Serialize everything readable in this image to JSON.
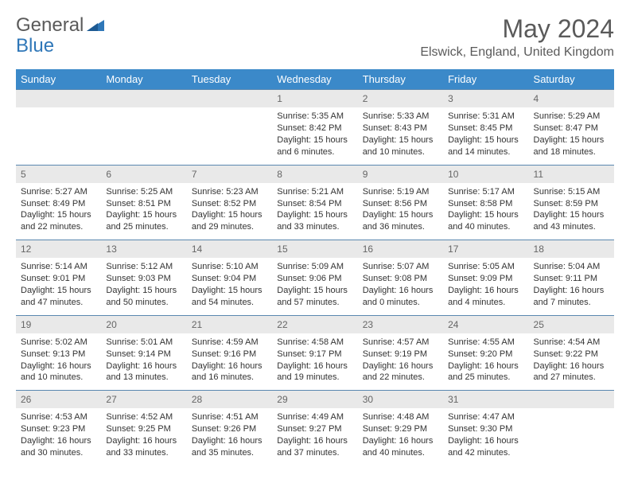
{
  "logo": {
    "general": "General",
    "blue": "Blue"
  },
  "title": "May 2024",
  "location": "Elswick, England, United Kingdom",
  "colors": {
    "header_bg": "#3b89c9",
    "header_text": "#ffffff",
    "daynum_bg": "#e9e9e9",
    "daynum_text": "#666666",
    "border": "#5a88b0",
    "logo_blue": "#2f77b8",
    "logo_gray": "#5a5a5a"
  },
  "day_names": [
    "Sunday",
    "Monday",
    "Tuesday",
    "Wednesday",
    "Thursday",
    "Friday",
    "Saturday"
  ],
  "weeks": [
    {
      "nums": [
        "",
        "",
        "",
        "1",
        "2",
        "3",
        "4"
      ],
      "cells": [
        null,
        null,
        null,
        {
          "sunrise": "Sunrise: 5:35 AM",
          "sunset": "Sunset: 8:42 PM",
          "daylight": "Daylight: 15 hours and 6 minutes."
        },
        {
          "sunrise": "Sunrise: 5:33 AM",
          "sunset": "Sunset: 8:43 PM",
          "daylight": "Daylight: 15 hours and 10 minutes."
        },
        {
          "sunrise": "Sunrise: 5:31 AM",
          "sunset": "Sunset: 8:45 PM",
          "daylight": "Daylight: 15 hours and 14 minutes."
        },
        {
          "sunrise": "Sunrise: 5:29 AM",
          "sunset": "Sunset: 8:47 PM",
          "daylight": "Daylight: 15 hours and 18 minutes."
        }
      ]
    },
    {
      "nums": [
        "5",
        "6",
        "7",
        "8",
        "9",
        "10",
        "11"
      ],
      "cells": [
        {
          "sunrise": "Sunrise: 5:27 AM",
          "sunset": "Sunset: 8:49 PM",
          "daylight": "Daylight: 15 hours and 22 minutes."
        },
        {
          "sunrise": "Sunrise: 5:25 AM",
          "sunset": "Sunset: 8:51 PM",
          "daylight": "Daylight: 15 hours and 25 minutes."
        },
        {
          "sunrise": "Sunrise: 5:23 AM",
          "sunset": "Sunset: 8:52 PM",
          "daylight": "Daylight: 15 hours and 29 minutes."
        },
        {
          "sunrise": "Sunrise: 5:21 AM",
          "sunset": "Sunset: 8:54 PM",
          "daylight": "Daylight: 15 hours and 33 minutes."
        },
        {
          "sunrise": "Sunrise: 5:19 AM",
          "sunset": "Sunset: 8:56 PM",
          "daylight": "Daylight: 15 hours and 36 minutes."
        },
        {
          "sunrise": "Sunrise: 5:17 AM",
          "sunset": "Sunset: 8:58 PM",
          "daylight": "Daylight: 15 hours and 40 minutes."
        },
        {
          "sunrise": "Sunrise: 5:15 AM",
          "sunset": "Sunset: 8:59 PM",
          "daylight": "Daylight: 15 hours and 43 minutes."
        }
      ]
    },
    {
      "nums": [
        "12",
        "13",
        "14",
        "15",
        "16",
        "17",
        "18"
      ],
      "cells": [
        {
          "sunrise": "Sunrise: 5:14 AM",
          "sunset": "Sunset: 9:01 PM",
          "daylight": "Daylight: 15 hours and 47 minutes."
        },
        {
          "sunrise": "Sunrise: 5:12 AM",
          "sunset": "Sunset: 9:03 PM",
          "daylight": "Daylight: 15 hours and 50 minutes."
        },
        {
          "sunrise": "Sunrise: 5:10 AM",
          "sunset": "Sunset: 9:04 PM",
          "daylight": "Daylight: 15 hours and 54 minutes."
        },
        {
          "sunrise": "Sunrise: 5:09 AM",
          "sunset": "Sunset: 9:06 PM",
          "daylight": "Daylight: 15 hours and 57 minutes."
        },
        {
          "sunrise": "Sunrise: 5:07 AM",
          "sunset": "Sunset: 9:08 PM",
          "daylight": "Daylight: 16 hours and 0 minutes."
        },
        {
          "sunrise": "Sunrise: 5:05 AM",
          "sunset": "Sunset: 9:09 PM",
          "daylight": "Daylight: 16 hours and 4 minutes."
        },
        {
          "sunrise": "Sunrise: 5:04 AM",
          "sunset": "Sunset: 9:11 PM",
          "daylight": "Daylight: 16 hours and 7 minutes."
        }
      ]
    },
    {
      "nums": [
        "19",
        "20",
        "21",
        "22",
        "23",
        "24",
        "25"
      ],
      "cells": [
        {
          "sunrise": "Sunrise: 5:02 AM",
          "sunset": "Sunset: 9:13 PM",
          "daylight": "Daylight: 16 hours and 10 minutes."
        },
        {
          "sunrise": "Sunrise: 5:01 AM",
          "sunset": "Sunset: 9:14 PM",
          "daylight": "Daylight: 16 hours and 13 minutes."
        },
        {
          "sunrise": "Sunrise: 4:59 AM",
          "sunset": "Sunset: 9:16 PM",
          "daylight": "Daylight: 16 hours and 16 minutes."
        },
        {
          "sunrise": "Sunrise: 4:58 AM",
          "sunset": "Sunset: 9:17 PM",
          "daylight": "Daylight: 16 hours and 19 minutes."
        },
        {
          "sunrise": "Sunrise: 4:57 AM",
          "sunset": "Sunset: 9:19 PM",
          "daylight": "Daylight: 16 hours and 22 minutes."
        },
        {
          "sunrise": "Sunrise: 4:55 AM",
          "sunset": "Sunset: 9:20 PM",
          "daylight": "Daylight: 16 hours and 25 minutes."
        },
        {
          "sunrise": "Sunrise: 4:54 AM",
          "sunset": "Sunset: 9:22 PM",
          "daylight": "Daylight: 16 hours and 27 minutes."
        }
      ]
    },
    {
      "nums": [
        "26",
        "27",
        "28",
        "29",
        "30",
        "31",
        ""
      ],
      "cells": [
        {
          "sunrise": "Sunrise: 4:53 AM",
          "sunset": "Sunset: 9:23 PM",
          "daylight": "Daylight: 16 hours and 30 minutes."
        },
        {
          "sunrise": "Sunrise: 4:52 AM",
          "sunset": "Sunset: 9:25 PM",
          "daylight": "Daylight: 16 hours and 33 minutes."
        },
        {
          "sunrise": "Sunrise: 4:51 AM",
          "sunset": "Sunset: 9:26 PM",
          "daylight": "Daylight: 16 hours and 35 minutes."
        },
        {
          "sunrise": "Sunrise: 4:49 AM",
          "sunset": "Sunset: 9:27 PM",
          "daylight": "Daylight: 16 hours and 37 minutes."
        },
        {
          "sunrise": "Sunrise: 4:48 AM",
          "sunset": "Sunset: 9:29 PM",
          "daylight": "Daylight: 16 hours and 40 minutes."
        },
        {
          "sunrise": "Sunrise: 4:47 AM",
          "sunset": "Sunset: 9:30 PM",
          "daylight": "Daylight: 16 hours and 42 minutes."
        },
        null
      ]
    }
  ]
}
